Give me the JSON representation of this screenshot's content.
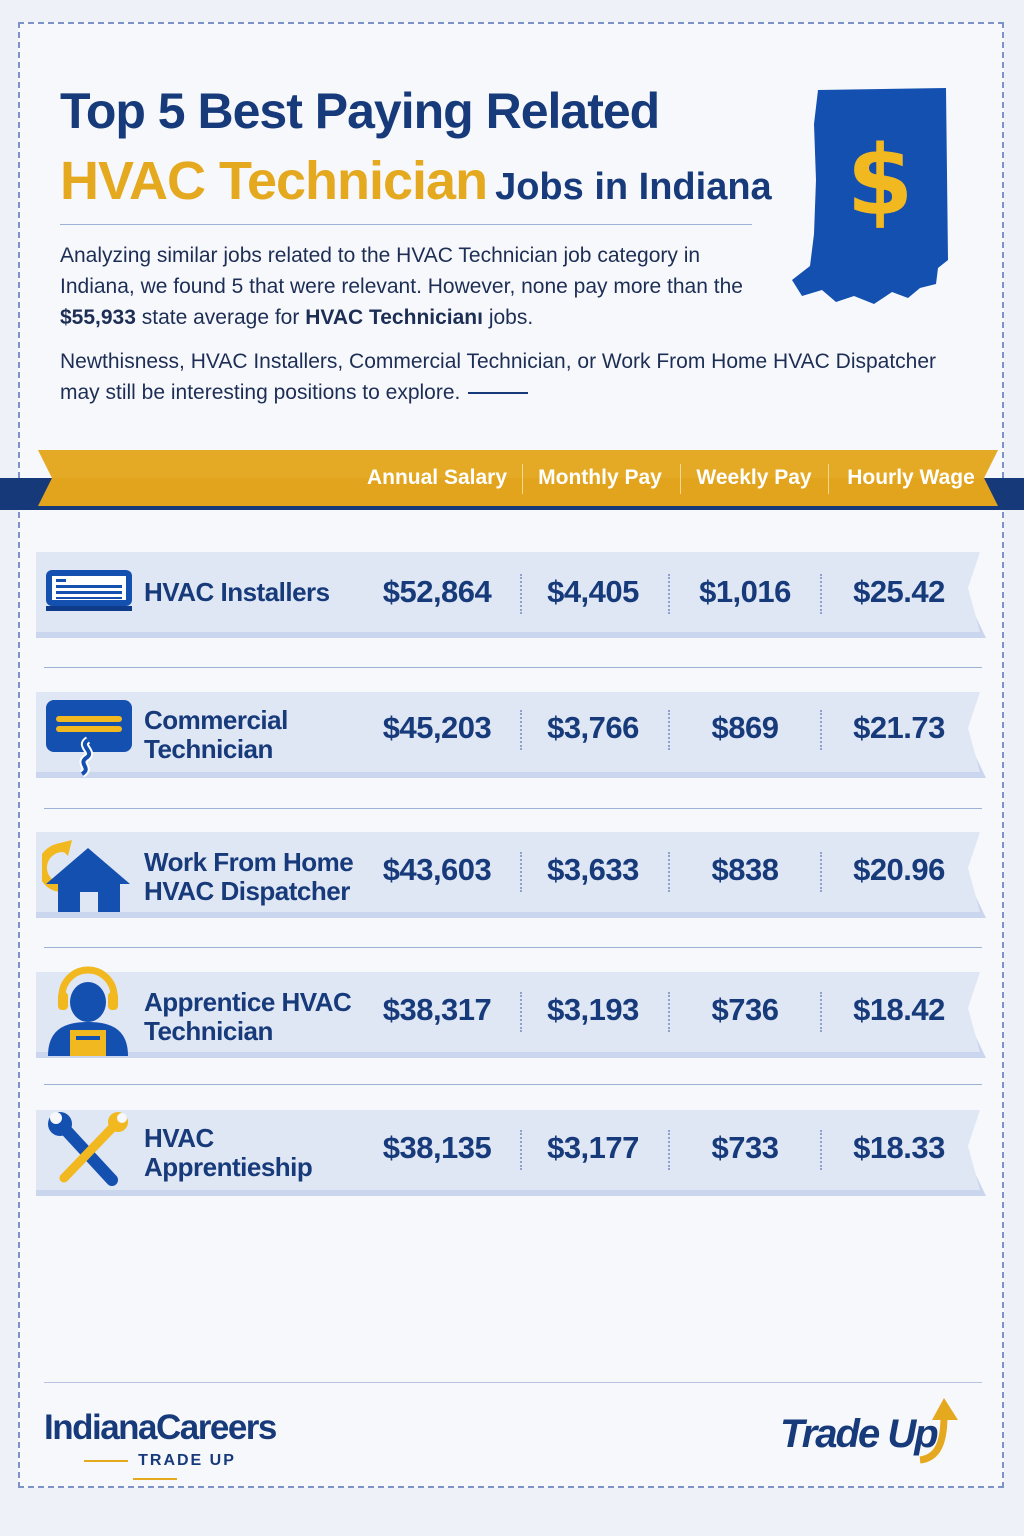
{
  "header": {
    "title_line1": "Top 5 Best Paying Related",
    "title_highlight": "HVAC Technician",
    "title_rest": "Jobs in Indiana",
    "map_symbol": "$"
  },
  "intro": {
    "p1_text": "Analyzing similar jobs related to the HVAC Technician job category in Indiana, we found 5 that were relevant. However, none pay more than the",
    "p1_amount": "$55,933",
    "p1_mid": "state average for",
    "p1_job": "HVAC Technicianı",
    "p1_end": "jobs.",
    "p2_text": "Newthisness, HVAC Installers, Commercial Technician, or Work From Home HVAC Dispatcher may still be interesting positions to explore."
  },
  "columns": [
    "Annual Salary",
    "Monthly Pay",
    "Weekly Pay",
    "Hourly Wage"
  ],
  "jobs": [
    {
      "name": "HVAC Installers",
      "annual": "$52,864",
      "monthly": "$4,405",
      "weekly": "$1,016",
      "hourly": "$25.42",
      "icon": "air-vent-icon"
    },
    {
      "name": "Commercial Technician",
      "annual": "$45,203",
      "monthly": "$3,766",
      "weekly": "$869",
      "hourly": "$21.73",
      "icon": "ac-unit-icon"
    },
    {
      "name": "Work From Home HVAC Dispatcher",
      "annual": "$43,603",
      "monthly": "$3,633",
      "weekly": "$838",
      "hourly": "$20.96",
      "icon": "home-icon"
    },
    {
      "name": "Apprentice HVAC Technician",
      "annual": "$38,317",
      "monthly": "$3,193",
      "weekly": "$736",
      "hourly": "$18.42",
      "icon": "worker-icon"
    },
    {
      "name": "HVAC Apprentieship",
      "annual": "$38,135",
      "monthly": "$3,177",
      "weekly": "$733",
      "hourly": "$18.33",
      "icon": "wrench-screwdriver-icon"
    }
  ],
  "footer": {
    "brand": "IndianaCareers",
    "brand_sub": "TRADE UP",
    "tradeup_logo": "Trade Up"
  },
  "colors": {
    "navy": "#173a7a",
    "gold": "#e4a91e",
    "map_blue": "#1450b0",
    "row_bg": "#dbe3f3"
  }
}
